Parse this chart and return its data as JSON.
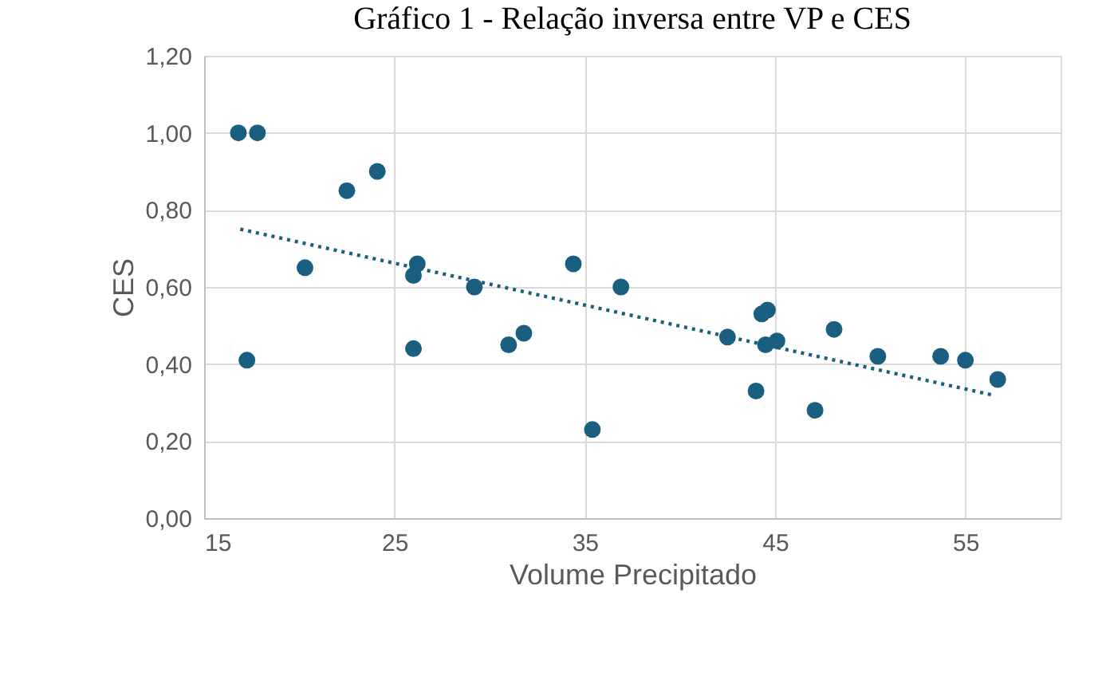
{
  "chart_data": {
    "type": "scatter",
    "title": "Gráfico 1 - Relação inversa entre VP e CES",
    "xlabel": "Volume Precipitado",
    "ylabel": "CES",
    "xlim": [
      15,
      60
    ],
    "xticks": [
      15,
      25,
      35,
      45,
      55
    ],
    "ylim": [
      0,
      1.2
    ],
    "yticks": [
      {
        "value": 0,
        "label": "0,00"
      },
      {
        "value": 0.2,
        "label": "0,20"
      },
      {
        "value": 0.4,
        "label": "0,40"
      },
      {
        "value": 0.6,
        "label": "0,60"
      },
      {
        "value": 0.8,
        "label": "0,80"
      },
      {
        "value": 1.0,
        "label": "1,00"
      },
      {
        "value": 1.2,
        "label": "1,20"
      }
    ],
    "grid": true,
    "marker": "circle",
    "series": [
      {
        "color": "#1a5e80",
        "x": [
          16.8,
          17.8,
          22.5,
          24.1,
          20.3,
          17.25,
          26.2,
          26.0,
          26.0,
          29.2,
          31.0,
          31.8,
          34.4,
          35.4,
          36.9,
          42.5,
          44.3,
          44.6,
          44.5,
          45.1,
          44.0,
          47.1,
          48.1,
          50.4,
          53.7,
          55.0,
          56.7
        ],
        "values": [
          1.0,
          1.0,
          0.85,
          0.9,
          0.65,
          0.41,
          0.66,
          0.63,
          0.44,
          0.6,
          0.45,
          0.48,
          0.66,
          0.23,
          0.6,
          0.47,
          0.53,
          0.54,
          0.45,
          0.46,
          0.33,
          0.28,
          0.49,
          0.42,
          0.42,
          0.41,
          0.36
        ]
      },
      {
        "type": "line",
        "line_style": "dotted",
        "marker": "none",
        "color": "#1a5e80",
        "x": [
          16.9,
          56.4
        ],
        "values": [
          0.75,
          0.32
        ]
      }
    ]
  }
}
